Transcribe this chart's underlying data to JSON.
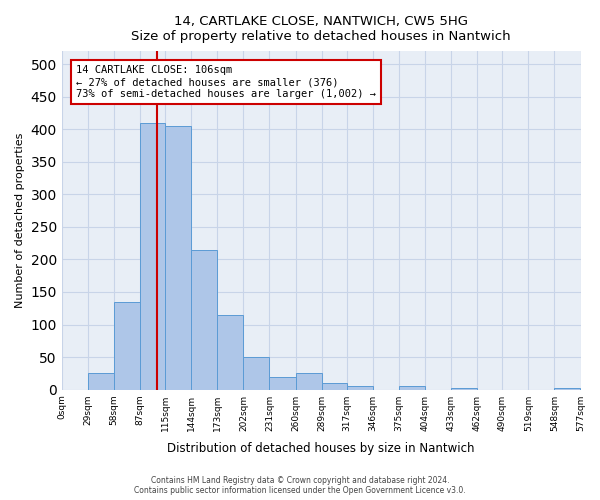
{
  "title": "14, CARTLAKE CLOSE, NANTWICH, CW5 5HG",
  "subtitle": "Size of property relative to detached houses in Nantwich",
  "xlabel": "Distribution of detached houses by size in Nantwich",
  "ylabel": "Number of detached properties",
  "bin_edges": [
    0,
    29,
    58,
    87,
    115,
    144,
    173,
    202,
    231,
    260,
    289,
    317,
    346,
    375,
    404,
    433,
    462,
    490,
    519,
    548,
    577
  ],
  "bar_heights": [
    0,
    25,
    135,
    410,
    405,
    215,
    115,
    50,
    20,
    25,
    10,
    5,
    0,
    5,
    0,
    2,
    0,
    0,
    0,
    2
  ],
  "bar_color": "#aec6e8",
  "bar_edgecolor": "#5b9bd5",
  "property_size": 106,
  "annotation_line1": "14 CARTLAKE CLOSE: 106sqm",
  "annotation_line2": "← 27% of detached houses are smaller (376)",
  "annotation_line3": "73% of semi-detached houses are larger (1,002) →",
  "annotation_box_color": "#cc0000",
  "annotation_bg": "#ffffff",
  "vline_color": "#cc0000",
  "grid_color": "#c8d4e8",
  "background_color": "#e8eef6",
  "yticks": [
    0,
    50,
    100,
    150,
    200,
    250,
    300,
    350,
    400,
    450,
    500
  ],
  "ylim": [
    0,
    520
  ],
  "footer_line1": "Contains HM Land Registry data © Crown copyright and database right 2024.",
  "footer_line2": "Contains public sector information licensed under the Open Government Licence v3.0."
}
